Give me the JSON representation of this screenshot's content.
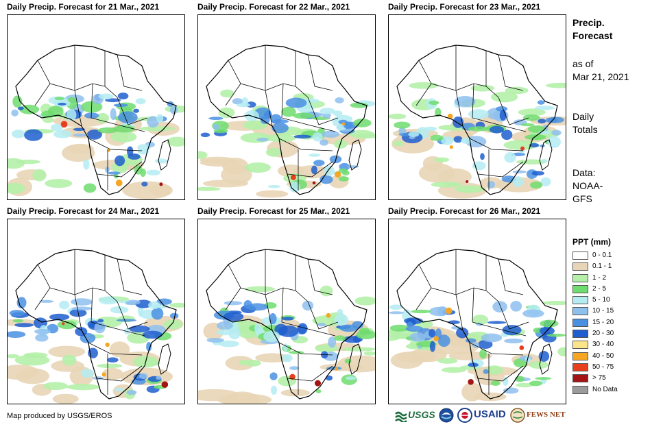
{
  "panels": [
    {
      "title": "Daily Precip. Forecast for 21 Mar., 2021"
    },
    {
      "title": "Daily Precip. Forecast for 22 Mar., 2021"
    },
    {
      "title": "Daily Precip. Forecast for 23 Mar., 2021"
    },
    {
      "title": "Daily Precip. Forecast for 24 Mar., 2021"
    },
    {
      "title": "Daily Precip. Forecast for 25 Mar., 2021"
    },
    {
      "title": "Daily Precip. Forecast for 26 Mar., 2021"
    }
  ],
  "sidebar": {
    "heading_line1": "Precip.",
    "heading_line2": "Forecast",
    "asof_line1": "as of",
    "asof_line2": "Mar 21, 2021",
    "daily_line1": "Daily",
    "daily_line2": "Totals",
    "data_line1": "Data:",
    "data_line2": "NOAA-",
    "data_line3": "GFS"
  },
  "legend": {
    "title": "PPT (mm)",
    "items": [
      {
        "label": "0 - 0.1",
        "color": "#ffffff"
      },
      {
        "label": "0.1 - 1",
        "color": "#e8d5b5"
      },
      {
        "label": "1 - 2",
        "color": "#b4f0a8"
      },
      {
        "label": "2 - 5",
        "color": "#6fdc6f"
      },
      {
        "label": "5 - 10",
        "color": "#b4ecf2"
      },
      {
        "label": "10 - 15",
        "color": "#8ec0ee"
      },
      {
        "label": "15 - 20",
        "color": "#4a90e2"
      },
      {
        "label": "20 - 30",
        "color": "#1f5ecf"
      },
      {
        "label": "30 - 40",
        "color": "#fbe58a"
      },
      {
        "label": "40 - 50",
        "color": "#f5a623"
      },
      {
        "label": "50 - 75",
        "color": "#e8401c"
      },
      {
        "label": "> 75",
        "color": "#a31515"
      },
      {
        "label": "No Data",
        "color": "#9b9b9b"
      }
    ]
  },
  "footer": {
    "credit": "Map produced by USGS/EROS",
    "logos": {
      "usgs": "USGS",
      "usaid": "USAID",
      "fewsnet": "FEWS NET"
    }
  }
}
